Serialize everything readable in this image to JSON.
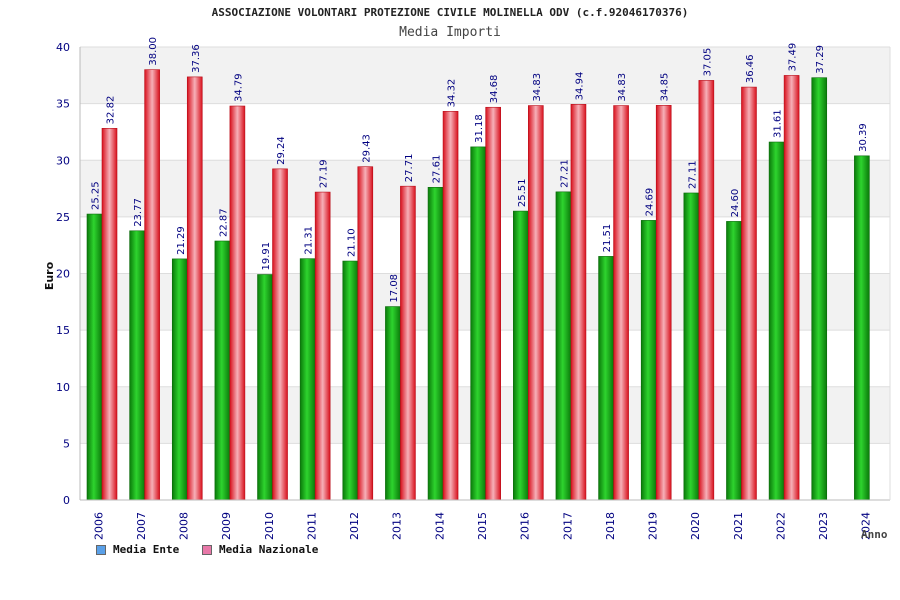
{
  "chart_data": {
    "type": "bar",
    "title": "ASSOCIAZIONE VOLONTARI PROTEZIONE CIVILE MOLINELLA ODV (c.f.92046170376)",
    "subtitle": "Media Importi",
    "xlabel": "Anno",
    "ylabel": "Euro",
    "ylim": [
      0,
      40
    ],
    "yticks": [
      0,
      5,
      10,
      15,
      20,
      25,
      30,
      35,
      40
    ],
    "categories": [
      "2006",
      "2007",
      "2008",
      "2009",
      "2010",
      "2011",
      "2012",
      "2013",
      "2014",
      "2015",
      "2016",
      "2017",
      "2018",
      "2019",
      "2020",
      "2021",
      "2022",
      "2023",
      "2024"
    ],
    "series": [
      {
        "name": "Media Ente",
        "color": "#1aa81a",
        "values": [
          25.25,
          23.77,
          21.29,
          22.87,
          19.91,
          21.31,
          21.1,
          17.08,
          27.61,
          31.18,
          25.51,
          27.21,
          21.51,
          24.69,
          27.11,
          24.6,
          31.61,
          37.29,
          30.39
        ],
        "labels": [
          "25.25",
          "23.77",
          "21.29",
          "22.87",
          "19.91",
          "21.31",
          "21.10",
          "17.08",
          "27.61",
          "31.18",
          "25.51",
          "27.21",
          "21.51",
          "24.69",
          "27.11",
          "24.60",
          "31.61",
          "37.29",
          "30.39"
        ]
      },
      {
        "name": "Media Nazionale",
        "color": "#e8283a",
        "values": [
          32.82,
          38.0,
          37.36,
          34.79,
          29.24,
          27.19,
          29.43,
          27.71,
          34.32,
          34.68,
          34.83,
          34.94,
          34.83,
          34.85,
          37.05,
          36.46,
          37.49,
          null,
          null
        ],
        "labels": [
          "32.82",
          "38.00",
          "37.36",
          "34.79",
          "29.24",
          "27.19",
          "29.43",
          "27.71",
          "34.32",
          "34.68",
          "34.83",
          "34.94",
          "34.83",
          "34.85",
          "37.05",
          "36.46",
          "37.49",
          "",
          ""
        ]
      }
    ],
    "legend": [
      "Media Ente",
      "Media Nazionale"
    ],
    "legend_position": "bottom-left",
    "legend_colors": [
      "#5aa0e8",
      "#e878a8"
    ],
    "grid": true
  }
}
